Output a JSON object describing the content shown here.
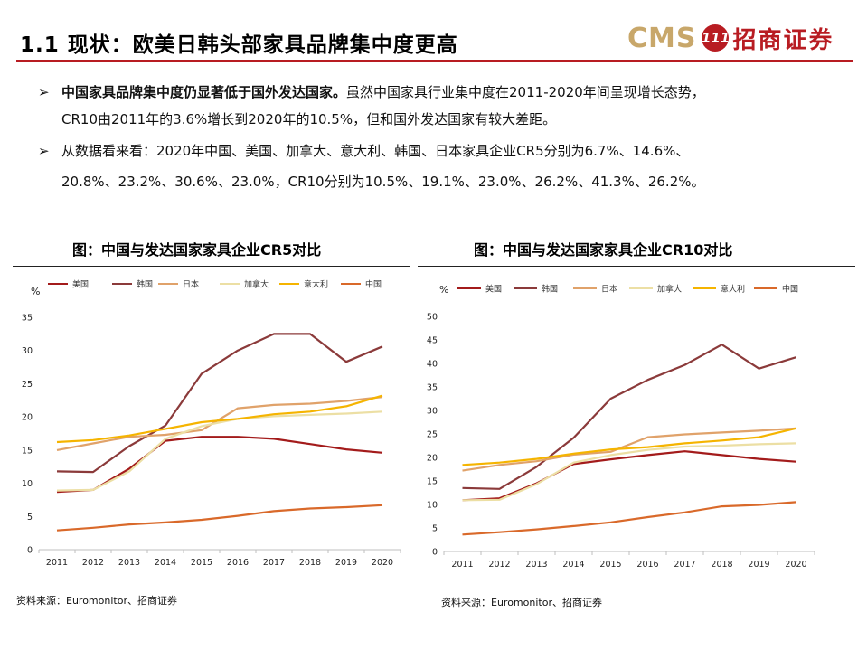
{
  "header": {
    "title": "1.1 现状：欧美日韩头部家具品牌集中度更高",
    "logo_en": "CMS",
    "logo_mark": "111",
    "logo_cn": "招商证券",
    "accent_color": "#b81c22"
  },
  "bullets": [
    {
      "icon": "arrow-bullet-icon",
      "bold_text": "中国家具品牌集中度仍显著低于国外发达国家。",
      "text_line1": "虽然中国家具行业集中度在2011-2020年间呈现增长态势，",
      "text_line2": "CR10由2011年的3.6%增长到2020年的10.5%，但和国外发达国家有较大差距。"
    },
    {
      "icon": "arrow-bullet-icon",
      "text_line1": "从数据看来看：2020年中国、美国、加拿大、意大利、韩国、日本家具企业CR5分别为6.7%、14.6%、",
      "text_line2": "20.8%、23.2%、30.6%、23.0%，CR10分别为10.5%、19.1%、23.0%、26.2%、41.3%、26.2%。"
    }
  ],
  "charts": {
    "cr5": {
      "title": "图：中国与发达国家家具企业CR5对比",
      "source": "资料来源：Euromonitor、招商证券"
    },
    "cr10": {
      "title": "图：中国与发达国家家具企业CR10对比",
      "source": "资料来源：Euromonitor、招商证券"
    }
  },
  "chart_data": [
    {
      "type": "line",
      "title": "图：中国与发达国家家具企业CR5对比",
      "ylabel": "%",
      "xlabel": "",
      "x": [
        "2011",
        "2012",
        "2013",
        "2014",
        "2015",
        "2016",
        "2017",
        "2018",
        "2019",
        "2020"
      ],
      "ylim": [
        0,
        35
      ],
      "yticks": [
        0,
        5,
        10,
        15,
        20,
        25,
        30,
        35
      ],
      "legend": "top",
      "series": [
        {
          "name": "美国",
          "color": "#a31b1b",
          "values": [
            8.7,
            9.0,
            12.2,
            16.4,
            17.0,
            17.0,
            16.7,
            15.9,
            15.1,
            14.6
          ]
        },
        {
          "name": "韩国",
          "color": "#8b3a3a",
          "values": [
            11.8,
            11.7,
            15.6,
            18.7,
            26.5,
            30.0,
            32.5,
            32.5,
            28.3,
            30.6
          ]
        },
        {
          "name": "日本",
          "color": "#e0a26a",
          "values": [
            15.0,
            16.0,
            17.0,
            17.3,
            18.0,
            21.3,
            21.8,
            22.0,
            22.4,
            23.0
          ]
        },
        {
          "name": "加拿大",
          "color": "#ecdfa4",
          "values": [
            8.9,
            9.0,
            11.8,
            16.7,
            18.6,
            19.7,
            20.1,
            20.3,
            20.5,
            20.8
          ]
        },
        {
          "name": "意大利",
          "color": "#f5b400",
          "values": [
            16.2,
            16.5,
            17.2,
            18.2,
            19.2,
            19.7,
            20.4,
            20.8,
            21.6,
            23.2
          ]
        },
        {
          "name": "中国",
          "color": "#d9692a",
          "values": [
            2.9,
            3.3,
            3.8,
            4.1,
            4.5,
            5.1,
            5.8,
            6.2,
            6.4,
            6.7
          ]
        }
      ]
    },
    {
      "type": "line",
      "title": "图：中国与发达国家家具企业CR10对比",
      "ylabel": "%",
      "xlabel": "",
      "x": [
        "2011",
        "2012",
        "2013",
        "2014",
        "2015",
        "2016",
        "2017",
        "2018",
        "2019",
        "2020"
      ],
      "ylim": [
        0,
        50
      ],
      "yticks": [
        0,
        5,
        10,
        15,
        20,
        25,
        30,
        35,
        40,
        45,
        50
      ],
      "legend": "top",
      "series": [
        {
          "name": "美国",
          "color": "#a31b1b",
          "values": [
            10.9,
            11.3,
            14.5,
            18.6,
            19.6,
            20.5,
            21.3,
            20.5,
            19.7,
            19.1
          ]
        },
        {
          "name": "韩国",
          "color": "#8b3a3a",
          "values": [
            13.5,
            13.3,
            18.0,
            24.2,
            32.5,
            36.5,
            39.7,
            44.0,
            38.9,
            41.3
          ]
        },
        {
          "name": "日本",
          "color": "#e0a26a",
          "values": [
            17.2,
            18.4,
            19.2,
            20.6,
            21.2,
            24.3,
            24.9,
            25.3,
            25.7,
            26.2
          ]
        },
        {
          "name": "加拿大",
          "color": "#ecdfa4",
          "values": [
            10.9,
            11.0,
            14.3,
            18.9,
            20.5,
            21.6,
            22.3,
            22.5,
            22.8,
            23.0
          ]
        },
        {
          "name": "意大利",
          "color": "#f5b400",
          "values": [
            18.4,
            18.9,
            19.7,
            20.8,
            21.7,
            22.2,
            23.0,
            23.6,
            24.3,
            26.2
          ]
        },
        {
          "name": "中国",
          "color": "#d9692a",
          "values": [
            3.6,
            4.1,
            4.7,
            5.4,
            6.2,
            7.3,
            8.3,
            9.6,
            9.9,
            10.5
          ]
        }
      ]
    }
  ]
}
